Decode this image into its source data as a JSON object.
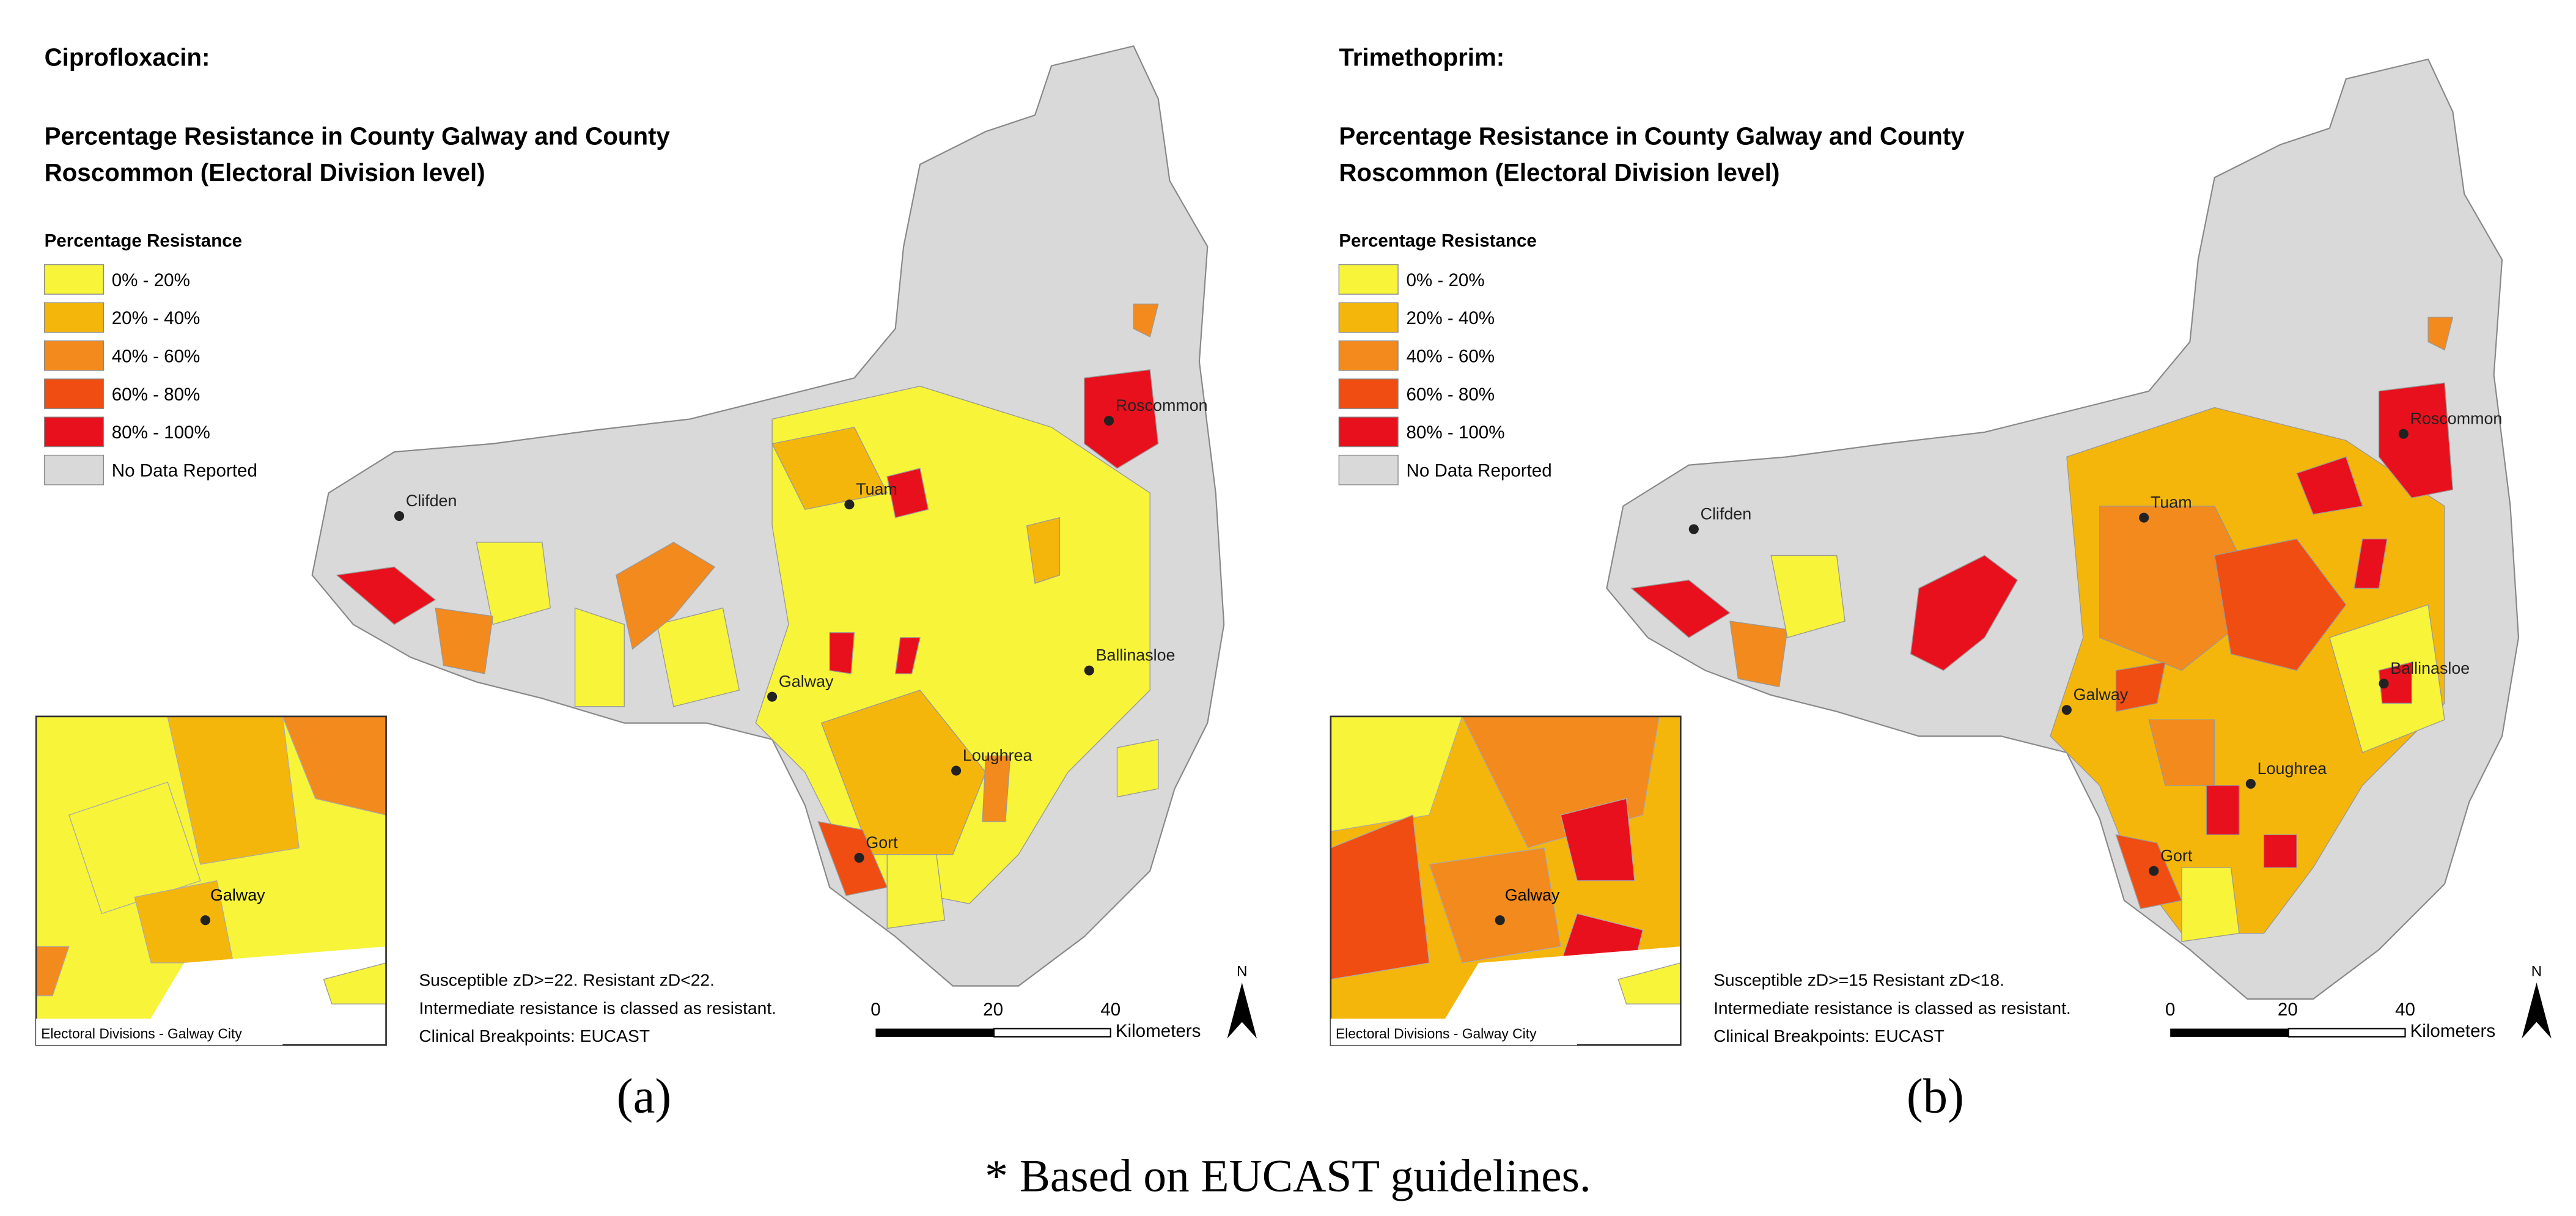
{
  "panels": [
    {
      "heading": "Ciprofloxacin:",
      "title_lines": [
        "Percentage Resistance in County Galway and County",
        "Roscommon (Electoral Division level)"
      ],
      "legend": {
        "title": "Percentage Resistance",
        "items": [
          {
            "label": "0% - 20%",
            "color": "#f7f43a"
          },
          {
            "label": "20% - 40%",
            "color": "#f5b60c"
          },
          {
            "label": "40% - 60%",
            "color": "#f28a1e"
          },
          {
            "label": "60% - 80%",
            "color": "#ef4d12"
          },
          {
            "label": "80% - 100%",
            "color": "#e8101c"
          },
          {
            "label": "No Data Reported",
            "color": "#d9d9d9"
          }
        ]
      },
      "towns": [
        "Clifden",
        "Tuam",
        "Roscommon",
        "Galway",
        "Ballinasloe",
        "Loughrea",
        "Gort"
      ],
      "notes": [
        "Susceptible zD>=22. Resistant zD<22.",
        "Intermediate resistance is classed as resistant.",
        "Clinical Breakpoints: EUCAST"
      ],
      "scale_labels": [
        0,
        20,
        40
      ],
      "scale_unit": "Kilometers",
      "north": "N",
      "inset": {
        "town": "Galway",
        "caption": "Electoral Divisions - Galway City"
      },
      "label": "(a)"
    },
    {
      "heading": "Trimethoprim:",
      "title_lines": [
        "Percentage Resistance in County Galway and County",
        "Roscommon (Electoral Division level)"
      ],
      "legend": {
        "title": "Percentage Resistance",
        "items": [
          {
            "label": "0% - 20%",
            "color": "#f7f43a"
          },
          {
            "label": "20% - 40%",
            "color": "#f5b60c"
          },
          {
            "label": "40% - 60%",
            "color": "#f28a1e"
          },
          {
            "label": "60% - 80%",
            "color": "#ef4d12"
          },
          {
            "label": "80% - 100%",
            "color": "#e8101c"
          },
          {
            "label": "No Data Reported",
            "color": "#d9d9d9"
          }
        ]
      },
      "towns": [
        "Clifden",
        "Tuam",
        "Roscommon",
        "Galway",
        "Ballinasloe",
        "Loughrea",
        "Gort"
      ],
      "notes": [
        "Susceptible zD>=15 Resistant zD<18.",
        "Intermediate resistance is classed as resistant.",
        "Clinical Breakpoints: EUCAST"
      ],
      "scale_labels": [
        0,
        20,
        40
      ],
      "scale_unit": "Kilometers",
      "north": "N",
      "inset": {
        "town": "Galway",
        "caption": "Electoral Divisions - Galway City"
      },
      "label": "(b)"
    }
  ],
  "footnote": "* Based on EUCAST guidelines."
}
